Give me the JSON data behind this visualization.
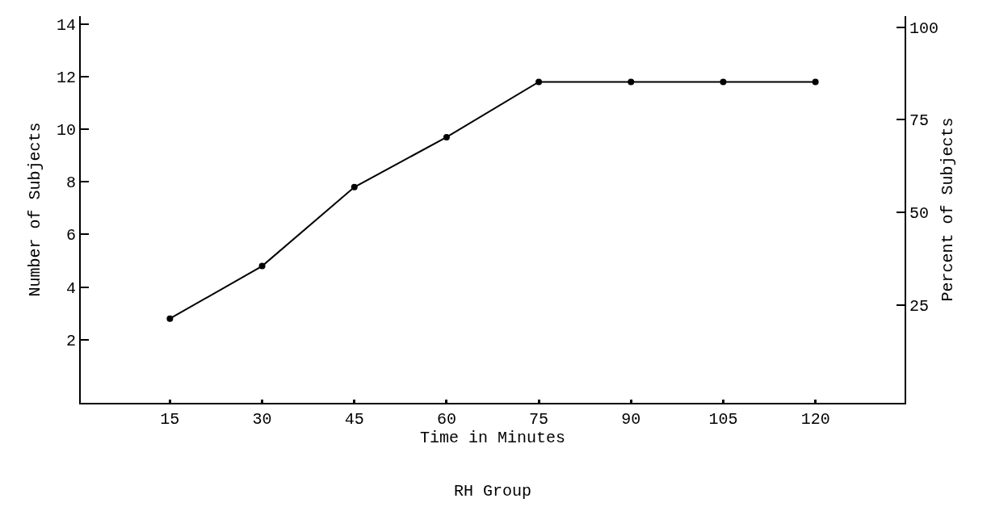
{
  "chart_data": {
    "type": "line",
    "title": "RH Group",
    "xlabel": "Time in Minutes",
    "ylabel": "Number of Subjects",
    "y2label": "Percent of Subjects",
    "x": [
      15,
      30,
      45,
      60,
      75,
      90,
      105,
      120
    ],
    "series": [
      {
        "color": "#000000",
        "values": [
          2.8,
          4.8,
          7.8,
          9.7,
          11.8,
          11.8,
          11.8,
          11.8
        ]
      }
    ],
    "xlim": [
      0.5,
      134.5
    ],
    "xticks": [
      15,
      30,
      45,
      60,
      75,
      90,
      105,
      120
    ],
    "ylim": [
      -0.4,
      14.3
    ],
    "yticks": [
      2,
      4,
      6,
      8,
      10,
      12,
      14
    ],
    "y2lim": [
      -1.4,
      103
    ],
    "y2ticks": [
      25,
      50,
      75,
      100
    ],
    "marker": "circle",
    "line_style": "solid"
  }
}
